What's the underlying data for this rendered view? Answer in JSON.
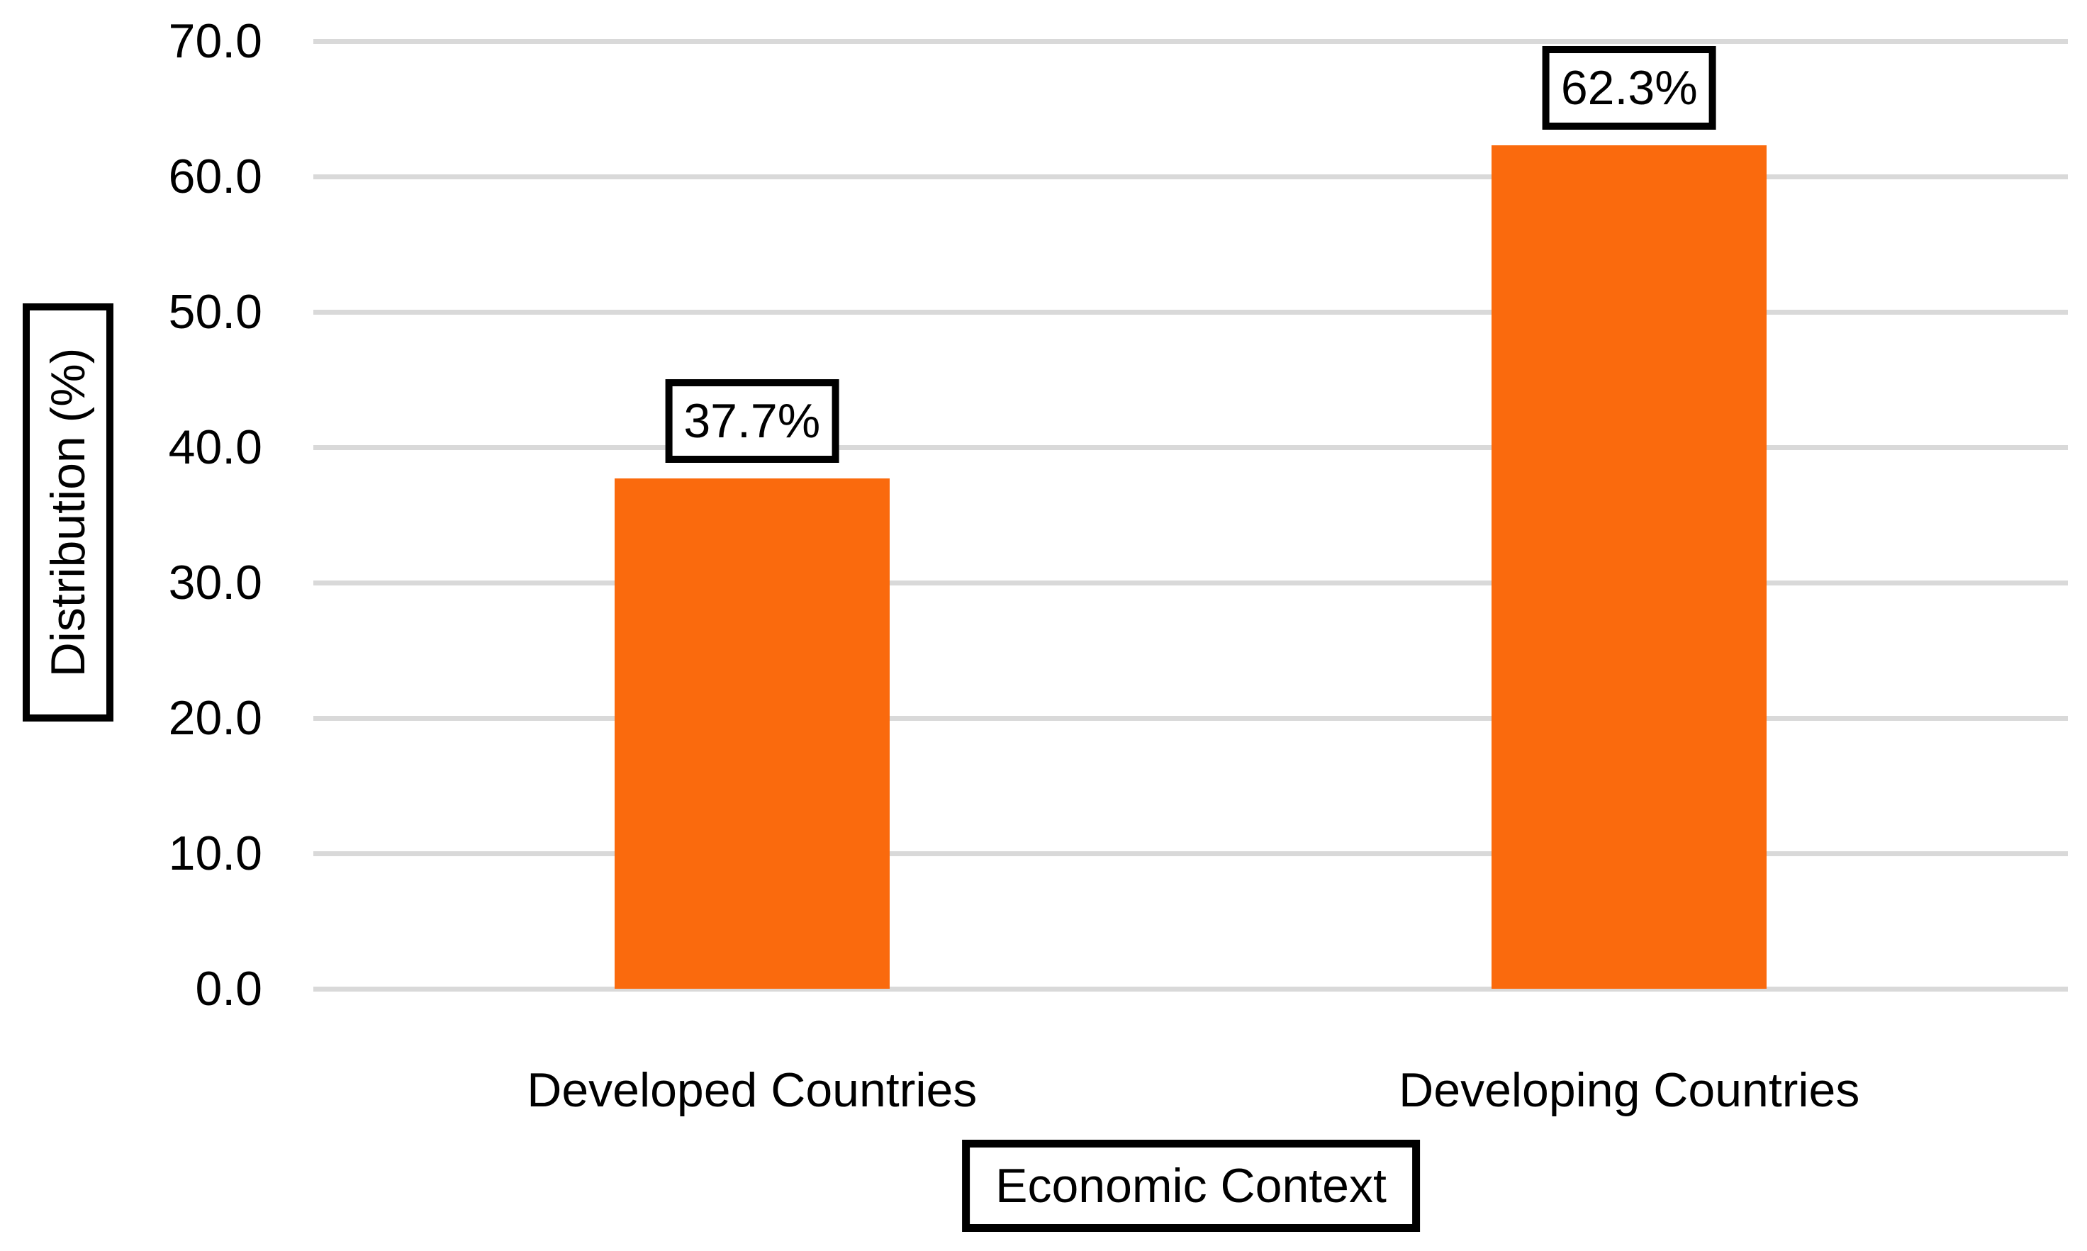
{
  "chart_data": {
    "type": "bar",
    "title": "",
    "categories": [
      "Developed Countries",
      "Developing Countries"
    ],
    "values": [
      37.7,
      62.3
    ],
    "value_labels": [
      "37.7%",
      "62.3%"
    ],
    "series_name": "Distribution",
    "xlabel": "Economic Context",
    "ylabel": "Distribution (%)",
    "ylim": [
      0,
      70
    ],
    "ytick_step": 10,
    "ytick_labels": [
      "0.0",
      "10.0",
      "20.0",
      "30.0",
      "40.0",
      "50.0",
      "60.0",
      "70.0"
    ],
    "grid": true,
    "legend_position": "none",
    "bar_color": "#FA6A0D",
    "gridline_color": "#D9D9D9",
    "text_color": "#000000",
    "label_box_border_color": "#000000",
    "background_color": "#FFFFFF"
  }
}
